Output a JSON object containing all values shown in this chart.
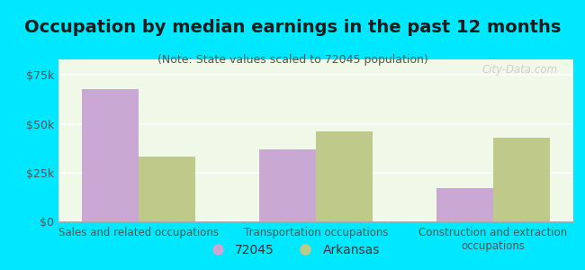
{
  "title": "Occupation by median earnings in the past 12 months",
  "subtitle": "(Note: State values scaled to 72045 population)",
  "categories": [
    "Sales and related occupations",
    "Transportation occupations",
    "Construction and extraction\noccupations"
  ],
  "values_72045": [
    68000,
    37000,
    17000
  ],
  "values_arkansas": [
    33000,
    46000,
    43000
  ],
  "color_72045": "#c9a8d4",
  "color_arkansas": "#bec98a",
  "ylim": [
    0,
    83000
  ],
  "yticks": [
    0,
    25000,
    50000,
    75000
  ],
  "ytick_labels": [
    "$0",
    "$25k",
    "$50k",
    "$75k"
  ],
  "background_outer": "#00e8ff",
  "background_inner_top": "#f0f8e8",
  "background_inner_bottom": "#e0f0d0",
  "grid_color": "#ffffff",
  "axis_color": "#aaaaaa",
  "label_72045": "72045",
  "label_arkansas": "Arkansas",
  "bar_width": 0.32,
  "title_fontsize": 14,
  "subtitle_fontsize": 9,
  "legend_fontsize": 10,
  "tick_fontsize": 9,
  "cat_fontsize": 8.5,
  "watermark_text": "City-Data.com"
}
